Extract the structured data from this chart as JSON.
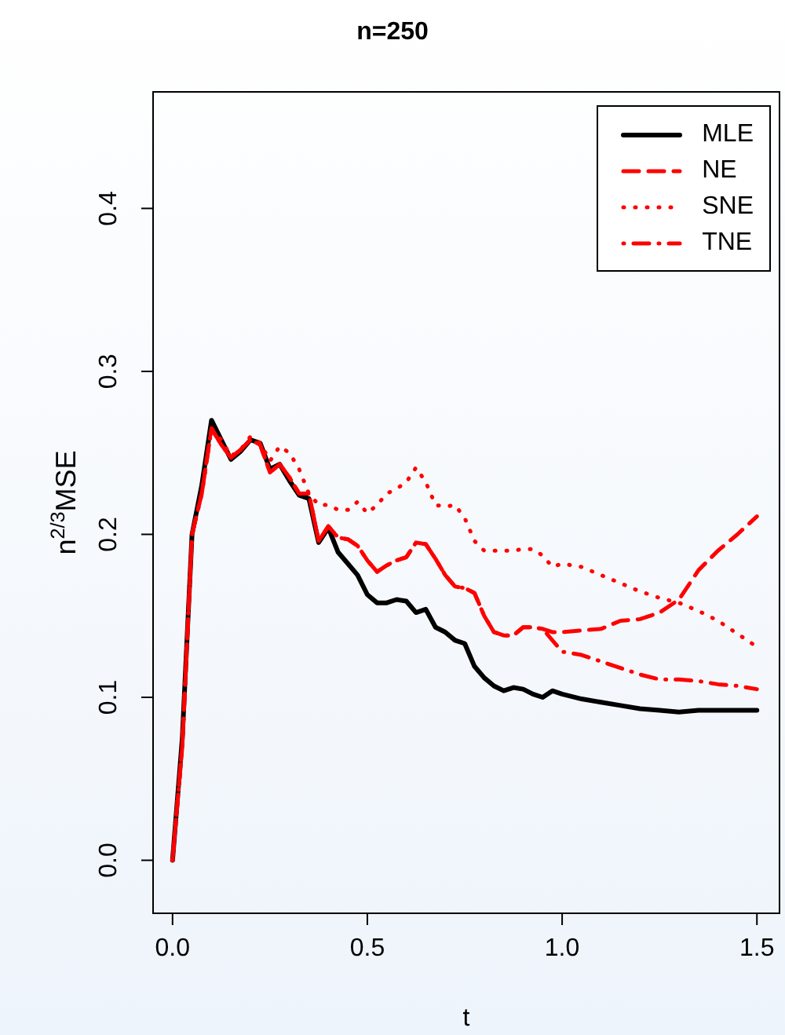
{
  "chart_data": {
    "type": "line",
    "title": "n=250",
    "xlabel": "t",
    "ylabel": "n$^{2/3}$MSE",
    "x": [
      0,
      0.025,
      0.05,
      0.075,
      0.1,
      0.125,
      0.15,
      0.175,
      0.2,
      0.225,
      0.25,
      0.275,
      0.3,
      0.325,
      0.35,
      0.375,
      0.4,
      0.425,
      0.45,
      0.475,
      0.5,
      0.525,
      0.55,
      0.575,
      0.6,
      0.625,
      0.65,
      0.675,
      0.7,
      0.725,
      0.75,
      0.775,
      0.8,
      0.825,
      0.85,
      0.875,
      0.9,
      0.925,
      0.95,
      0.975,
      1.0,
      1.05,
      1.1,
      1.15,
      1.2,
      1.25,
      1.3,
      1.35,
      1.4,
      1.45,
      1.5
    ],
    "series": [
      {
        "name": "MLE",
        "color": "#000000",
        "line_style": "solid",
        "values": [
          0,
          0.075,
          0.2,
          0.23,
          0.27,
          0.258,
          0.246,
          0.251,
          0.258,
          0.256,
          0.24,
          0.243,
          0.233,
          0.224,
          0.222,
          0.195,
          0.204,
          0.189,
          0.182,
          0.175,
          0.163,
          0.158,
          0.158,
          0.16,
          0.159,
          0.152,
          0.154,
          0.143,
          0.14,
          0.135,
          0.133,
          0.119,
          0.112,
          0.107,
          0.104,
          0.106,
          0.105,
          0.102,
          0.1,
          0.104,
          0.102,
          0.099,
          0.097,
          0.095,
          0.093,
          0.092,
          0.091,
          0.092,
          0.092,
          0.092,
          0.092
        ]
      },
      {
        "name": "NE",
        "color": "#ff0000",
        "line_style": "dashed",
        "values": [
          0,
          0.07,
          0.2,
          0.225,
          0.265,
          0.255,
          0.247,
          0.252,
          0.258,
          0.255,
          0.238,
          0.243,
          0.235,
          0.225,
          0.225,
          0.196,
          0.205,
          0.198,
          0.197,
          0.193,
          0.184,
          0.177,
          0.181,
          0.184,
          0.186,
          0.195,
          0.194,
          0.185,
          0.175,
          0.168,
          0.167,
          0.164,
          0.15,
          0.14,
          0.138,
          0.138,
          0.143,
          0.143,
          0.142,
          0.14,
          0.14,
          0.141,
          0.142,
          0.147,
          0.148,
          0.152,
          0.16,
          0.178,
          0.19,
          0.2,
          0.211
        ]
      },
      {
        "name": "SNE",
        "color": "#ff0000",
        "line_style": "dotted",
        "values": [
          0,
          0.07,
          0.2,
          0.225,
          0.265,
          0.258,
          0.248,
          0.252,
          0.26,
          0.256,
          0.245,
          0.254,
          0.25,
          0.24,
          0.225,
          0.218,
          0.218,
          0.215,
          0.215,
          0.22,
          0.213,
          0.218,
          0.225,
          0.228,
          0.232,
          0.241,
          0.232,
          0.218,
          0.217,
          0.218,
          0.21,
          0.196,
          0.19,
          0.19,
          0.19,
          0.19,
          0.191,
          0.191,
          0.187,
          0.18,
          0.182,
          0.18,
          0.175,
          0.17,
          0.165,
          0.161,
          0.158,
          0.153,
          0.147,
          0.139,
          0.131
        ]
      },
      {
        "name": "TNE",
        "color": "#ff0000",
        "line_style": "dashdot",
        "values": [
          0,
          0.07,
          0.2,
          0.225,
          0.265,
          0.255,
          0.247,
          0.252,
          0.258,
          0.255,
          0.238,
          0.243,
          0.235,
          0.225,
          0.225,
          0.196,
          0.205,
          0.198,
          0.197,
          0.193,
          0.184,
          0.177,
          0.181,
          0.184,
          0.186,
          0.195,
          0.194,
          0.185,
          0.175,
          0.168,
          0.167,
          0.164,
          0.15,
          0.14,
          0.138,
          0.138,
          0.143,
          0.143,
          0.142,
          0.135,
          0.128,
          0.126,
          0.122,
          0.118,
          0.114,
          0.111,
          0.111,
          0.11,
          0.108,
          0.107,
          0.105
        ]
      }
    ],
    "xlim": [
      -0.052,
      1.56
    ],
    "ylim": [
      -0.033,
      0.472
    ],
    "xticks": [
      {
        "value": 0,
        "label": "0.0"
      },
      0.5,
      {
        "value": 1,
        "label": "1.0"
      },
      1.5
    ],
    "yticks": [
      {
        "value": 0,
        "label": "0.0"
      },
      0.1,
      0.2,
      0.3,
      0.4
    ],
    "legend": "top right",
    "grid": false
  }
}
